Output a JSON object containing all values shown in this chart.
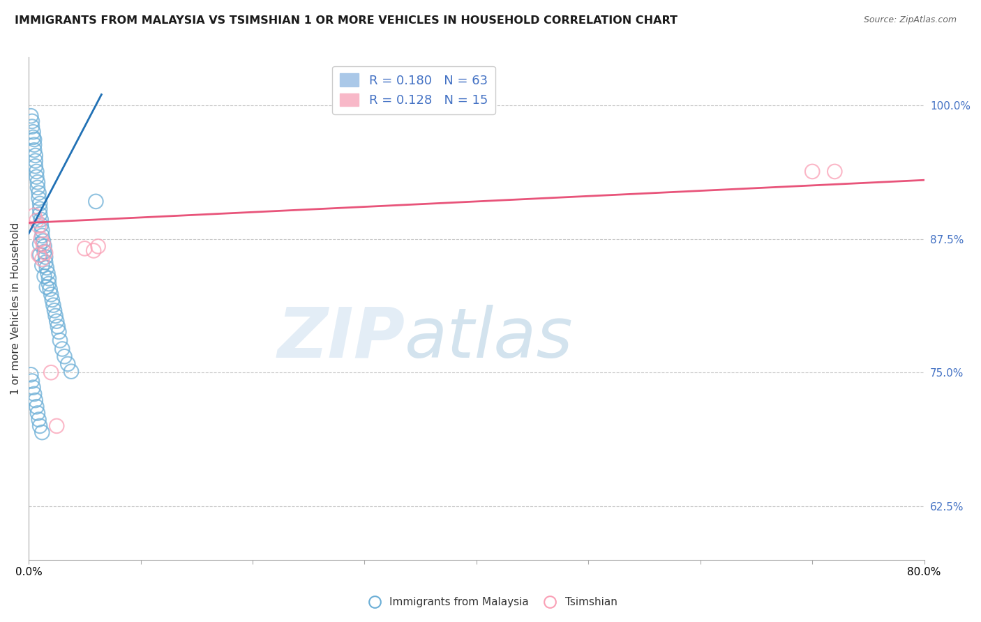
{
  "title": "IMMIGRANTS FROM MALAYSIA VS TSIMSHIAN 1 OR MORE VEHICLES IN HOUSEHOLD CORRELATION CHART",
  "source": "Source: ZipAtlas.com",
  "ylabel": "1 or more Vehicles in Household",
  "ylabel_ticks": [
    "62.5%",
    "75.0%",
    "87.5%",
    "100.0%"
  ],
  "ylabel_tick_values": [
    0.625,
    0.75,
    0.875,
    1.0
  ],
  "xmin": 0.0,
  "xmax": 0.8,
  "ymin": 0.575,
  "ymax": 1.045,
  "watermark_zip": "ZIP",
  "watermark_atlas": "atlas",
  "blue_scatter_x": [
    0.002,
    0.003,
    0.003,
    0.004,
    0.004,
    0.005,
    0.005,
    0.005,
    0.006,
    0.006,
    0.006,
    0.007,
    0.007,
    0.008,
    0.008,
    0.009,
    0.009,
    0.01,
    0.01,
    0.01,
    0.011,
    0.011,
    0.012,
    0.012,
    0.013,
    0.014,
    0.014,
    0.015,
    0.015,
    0.016,
    0.017,
    0.018,
    0.018,
    0.019,
    0.02,
    0.021,
    0.022,
    0.023,
    0.024,
    0.025,
    0.026,
    0.027,
    0.028,
    0.03,
    0.032,
    0.035,
    0.038,
    0.01,
    0.01,
    0.012,
    0.014,
    0.016,
    0.06,
    0.002,
    0.003,
    0.004,
    0.005,
    0.006,
    0.007,
    0.008,
    0.009,
    0.01,
    0.012
  ],
  "blue_scatter_y": [
    0.99,
    0.985,
    0.98,
    0.975,
    0.97,
    0.968,
    0.963,
    0.958,
    0.953,
    0.948,
    0.943,
    0.938,
    0.933,
    0.928,
    0.923,
    0.918,
    0.913,
    0.908,
    0.903,
    0.898,
    0.893,
    0.888,
    0.883,
    0.878,
    0.873,
    0.868,
    0.863,
    0.858,
    0.853,
    0.848,
    0.843,
    0.838,
    0.833,
    0.828,
    0.823,
    0.818,
    0.813,
    0.808,
    0.803,
    0.798,
    0.793,
    0.788,
    0.78,
    0.772,
    0.765,
    0.758,
    0.751,
    0.87,
    0.86,
    0.85,
    0.84,
    0.83,
    0.91,
    0.748,
    0.742,
    0.736,
    0.73,
    0.724,
    0.718,
    0.712,
    0.706,
    0.7,
    0.694
  ],
  "pink_scatter_x": [
    0.005,
    0.007,
    0.009,
    0.011,
    0.013,
    0.015,
    0.009,
    0.012,
    0.05,
    0.058,
    0.062,
    0.02,
    0.025,
    0.7,
    0.72
  ],
  "pink_scatter_y": [
    0.897,
    0.892,
    0.887,
    0.875,
    0.87,
    0.862,
    0.86,
    0.856,
    0.866,
    0.864,
    0.868,
    0.75,
    0.7,
    0.938,
    0.938
  ],
  "blue_line_x": [
    0.0,
    0.065
  ],
  "blue_line_y": [
    0.88,
    1.01
  ],
  "pink_line_x": [
    0.0,
    0.8
  ],
  "pink_line_y": [
    0.89,
    0.93
  ],
  "scatter_color_blue": "#6baed6",
  "scatter_color_pink": "#fa9fb5",
  "line_color_blue": "#2171b5",
  "line_color_pink": "#e8547a",
  "legend_text_color": "#4472c4",
  "grid_color": "#c8c8c8",
  "title_fontsize": 11.5,
  "tick_label_color_right": "#4472c4",
  "legend_label_blue": "R = 0.180   N = 63",
  "legend_label_pink": "R = 0.128   N = 15",
  "bottom_legend_blue": "Immigrants from Malaysia",
  "bottom_legend_pink": "Tsimshian"
}
